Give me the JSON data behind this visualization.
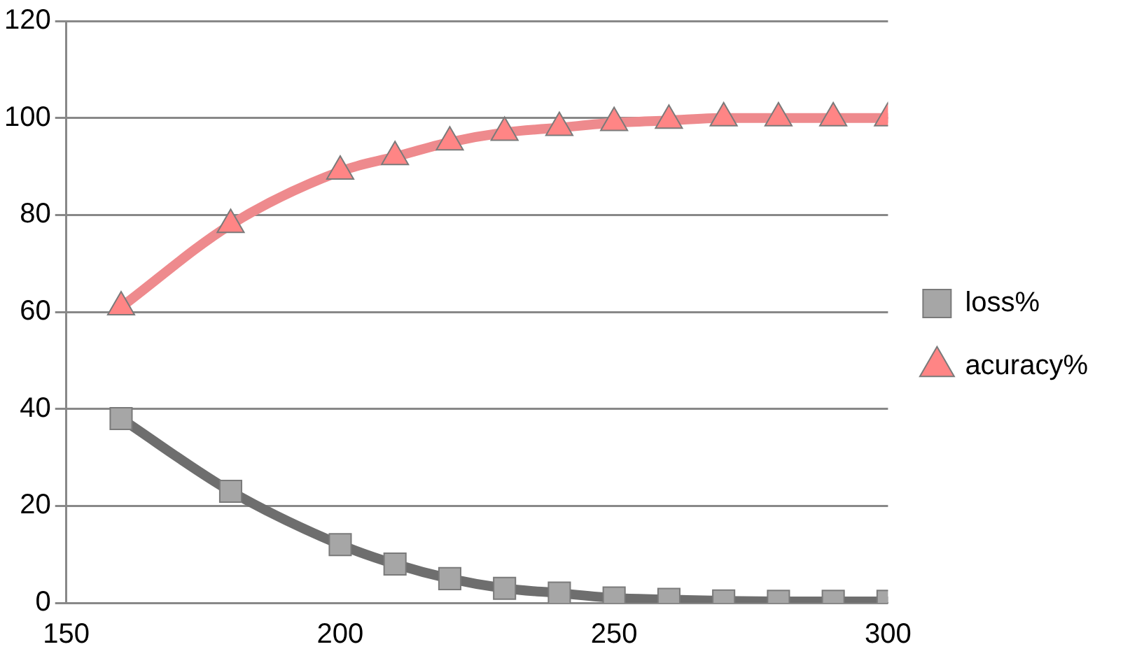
{
  "chart_data": {
    "type": "line",
    "x": [
      160,
      180,
      200,
      210,
      220,
      230,
      240,
      250,
      260,
      270,
      280,
      290,
      300
    ],
    "series": [
      {
        "name": "loss%",
        "color": "#6e6e6e",
        "marker": "square",
        "values": [
          38,
          23,
          12,
          8,
          5,
          3,
          2,
          1,
          0.7,
          0.4,
          0.3,
          0.3,
          0.3
        ]
      },
      {
        "name": "acuracy%",
        "color": "#ee8a8d",
        "marker": "triangle",
        "values": [
          61,
          78,
          89,
          92,
          95,
          97,
          98,
          99,
          99.5,
          100,
          100,
          100,
          100
        ]
      }
    ],
    "xlim": [
      150,
      300
    ],
    "xticks": [
      150,
      200,
      250,
      300
    ],
    "ylim": [
      0,
      120
    ],
    "yticks": [
      0,
      20,
      40,
      60,
      80,
      100,
      120
    ],
    "grid": "y",
    "legend": "right"
  }
}
